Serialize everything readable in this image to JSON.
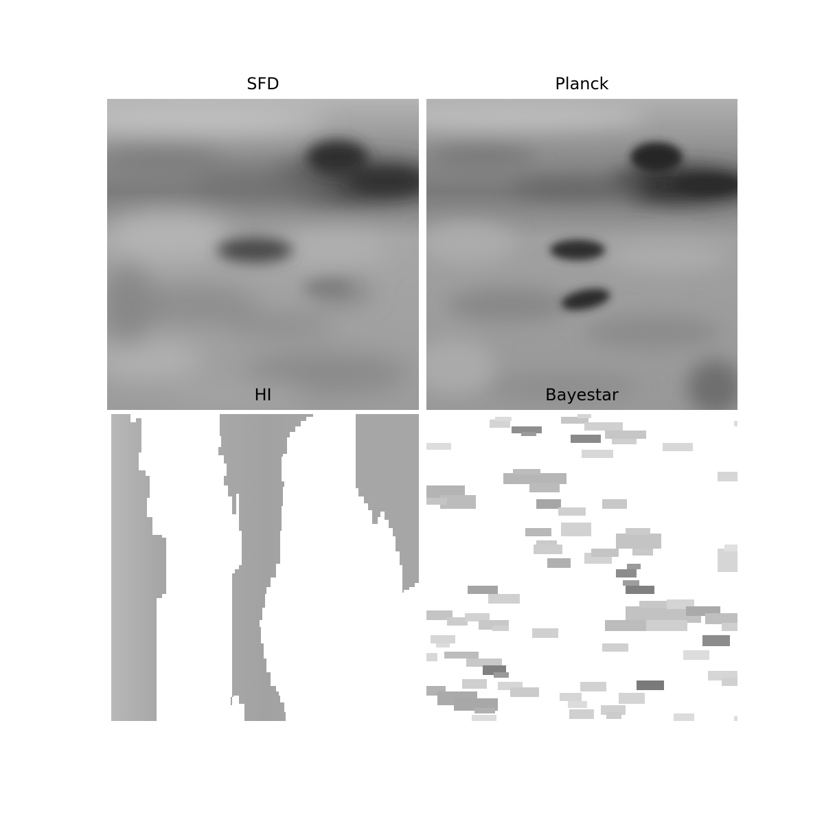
{
  "chart_data": [
    {
      "type": "heatmap",
      "title": "SFD",
      "colormap": "gray",
      "axes_visible": false,
      "grid": false,
      "features": [
        {
          "kind": "band",
          "description": "dark horizontal band with dense cloud at right"
        },
        {
          "kind": "clump",
          "description": "dark clump near center"
        }
      ]
    },
    {
      "type": "heatmap",
      "title": "Planck",
      "colormap": "gray",
      "axes_visible": false,
      "grid": false,
      "features": [
        {
          "kind": "band",
          "description": "dark horizontal band with dense cloud at right"
        },
        {
          "kind": "clump",
          "description": "dark clump near center"
        },
        {
          "kind": "clump",
          "description": "second dark clump below center"
        }
      ]
    },
    {
      "type": "heatmap",
      "title": "HI",
      "colormap": "gray",
      "axes_visible": false,
      "grid": false,
      "masked_color": "#ffffff",
      "features": [
        {
          "kind": "stripe",
          "description": "left vertical stripe"
        },
        {
          "kind": "stripe",
          "description": "central tapering stripe"
        },
        {
          "kind": "stripe",
          "description": "right wedge at top"
        }
      ]
    },
    {
      "type": "heatmap",
      "title": "Bayestar",
      "colormap": "gray",
      "axes_visible": false,
      "grid": false,
      "masked_color": "#ffffff",
      "features": [
        {
          "kind": "patches",
          "description": "scattered sparse pixel patches on white background"
        }
      ]
    }
  ]
}
